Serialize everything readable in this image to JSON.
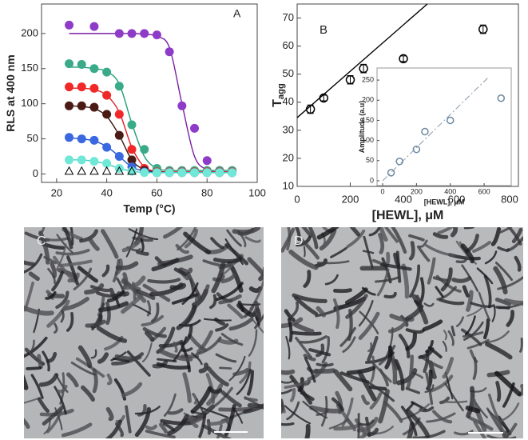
{
  "chart_data": [
    {
      "type": "scatter",
      "panel_label": "A",
      "xlabel": "Temp (°C)",
      "ylabel": "RLS at 400 nm",
      "xlim": [
        14,
        100
      ],
      "ylim": [
        -12,
        242
      ],
      "xticks": [
        20,
        40,
        60,
        80,
        100
      ],
      "yticks": [
        0,
        50,
        100,
        150,
        200
      ],
      "x": [
        25,
        30,
        35,
        40,
        45,
        50,
        55,
        60,
        65,
        70,
        75,
        80,
        85,
        90
      ],
      "series": [
        {
          "kind": "line",
          "color": "#7b1fa2",
          "values": [
            200,
            200,
            200,
            200,
            200,
            200,
            199,
            196,
            180,
            100,
            25,
            6,
            3,
            3
          ]
        },
        {
          "kind": "line",
          "color": "#1f9e78",
          "values": [
            152,
            152,
            150,
            146,
            128,
            72,
            25,
            8,
            5,
            5,
            5,
            5,
            5,
            5
          ]
        },
        {
          "kind": "line",
          "color": "#e02020",
          "values": [
            122,
            122,
            120,
            112,
            88,
            38,
            10,
            4,
            3,
            3,
            3,
            3,
            3,
            3
          ]
        },
        {
          "kind": "line",
          "color": "#3a1510",
          "values": [
            97,
            96,
            93,
            82,
            55,
            20,
            6,
            3,
            2,
            2,
            2,
            2,
            2,
            2
          ]
        },
        {
          "kind": "line",
          "color": "#2050d0",
          "values": [
            51,
            50,
            47,
            39,
            25,
            10,
            4,
            2,
            2,
            2,
            2,
            2,
            2,
            2
          ]
        },
        {
          "kind": "line",
          "color": "#40d0c0",
          "values": [
            20,
            20,
            18,
            14,
            8,
            4,
            2,
            2,
            2,
            2,
            2,
            2,
            2,
            2
          ]
        },
        {
          "marker": "filled",
          "color": "#8e3cc8",
          "values": [
            212,
            null,
            210,
            null,
            200,
            200,
            200,
            198,
            174,
            97,
            65,
            19,
            5,
            3
          ]
        },
        {
          "marker": "filled",
          "color": "#3aaa88",
          "values": [
            157,
            156,
            150,
            145,
            125,
            70,
            35,
            8,
            5,
            5,
            5,
            5,
            5,
            5
          ]
        },
        {
          "marker": "filled",
          "color": "#f02828",
          "values": [
            124,
            124,
            122,
            112,
            85,
            35,
            8,
            3,
            3,
            3,
            3,
            3,
            3,
            3
          ]
        },
        {
          "marker": "filled",
          "color": "#4a1a14",
          "values": [
            97,
            97,
            95,
            85,
            55,
            20,
            5,
            2,
            2,
            2,
            2,
            2,
            2,
            2
          ]
        },
        {
          "marker": "filled",
          "color": "#3a68e0",
          "values": [
            52,
            50,
            48,
            38,
            25,
            10,
            3,
            2,
            2,
            2,
            2,
            2,
            2,
            2
          ]
        },
        {
          "marker": "filled",
          "color": "#70e8d8",
          "values": [
            20,
            20,
            18,
            15,
            8,
            4,
            2,
            2,
            2,
            2,
            2,
            2,
            2,
            2
          ]
        },
        {
          "marker": "open-triangle",
          "color": "#000000",
          "values": [
            3,
            3,
            3,
            3,
            3,
            3,
            null,
            null,
            null,
            null,
            null,
            null,
            null,
            null
          ]
        }
      ]
    },
    {
      "type": "scatter",
      "panel_label": "B",
      "xlabel": "[HEWL], μM",
      "ylabel": "T",
      "ylabel_sub": "agg",
      "xlim": [
        0,
        833
      ],
      "ylim": [
        10,
        75
      ],
      "xticks": [
        0,
        200,
        400,
        600,
        800
      ],
      "yticks": [
        10,
        20,
        30,
        40,
        50,
        60,
        70
      ],
      "x": [
        50,
        100,
        200,
        250,
        400,
        700
      ],
      "series": [
        {
          "marker": "open-circle",
          "color": "#000000",
          "values": [
            37.5,
            41.5,
            48,
            52,
            55.5,
            66
          ],
          "errors": [
            1.5,
            1,
            1.5,
            1.5,
            1,
            1.5
          ]
        },
        {
          "kind": "line",
          "color": "#000000",
          "x": [
            0,
            490
          ],
          "values": [
            34.5,
            75
          ]
        }
      ]
    },
    {
      "type": "scatter",
      "xlabel": "[HEWL], μM",
      "ylabel": "Amplitude (a.u)",
      "xlim": [
        -33,
        760
      ],
      "ylim": [
        -12,
        280
      ],
      "xticks": [
        0,
        200,
        400,
        600
      ],
      "yticks": [
        0,
        50,
        100,
        150,
        200,
        250
      ],
      "x": [
        50,
        100,
        200,
        250,
        400,
        700
      ],
      "series": [
        {
          "marker": "open-circle",
          "color": "#6a88a0",
          "values": [
            20,
            48,
            78,
            122,
            150,
            205
          ]
        },
        {
          "kind": "line",
          "dash": true,
          "color": "#8a9aa8",
          "x": [
            0,
            620
          ],
          "values": [
            0,
            255
          ]
        }
      ]
    }
  ],
  "image_panels": [
    {
      "label": "C"
    },
    {
      "label": "D"
    }
  ]
}
